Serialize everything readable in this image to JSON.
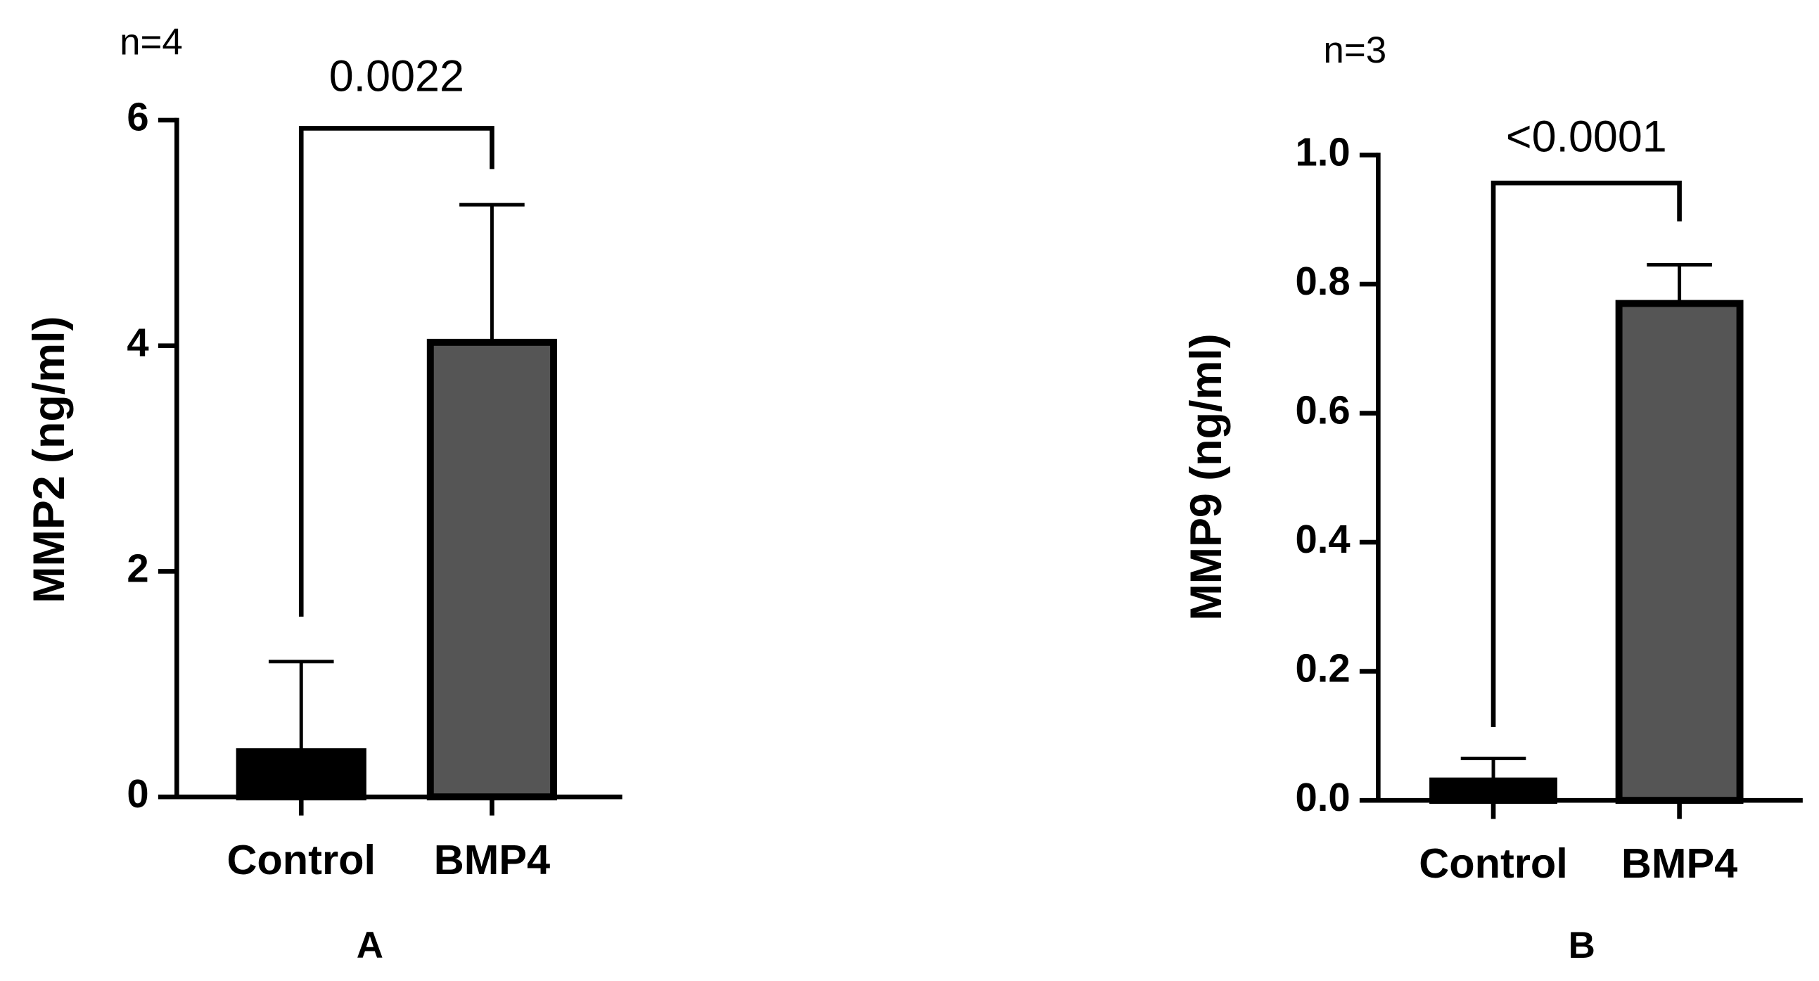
{
  "chart_data": [
    {
      "type": "bar",
      "n_label": "n=4",
      "annotation": "0.0022",
      "y_label": "MMP2 (ng/ml)",
      "panel_label": "A",
      "categories": [
        "Control",
        "BMP4"
      ],
      "values": [
        0.4,
        4.03
      ],
      "errors": [
        0.8,
        1.22
      ],
      "colors": [
        "#000000",
        "#555555"
      ],
      "ylim": [
        0,
        6
      ],
      "yticks": [
        0,
        2,
        4,
        6
      ]
    },
    {
      "type": "bar",
      "n_label": "n=3",
      "annotation": "<0.0001",
      "y_label": "MMP9 (ng/ml)",
      "panel_label": "B",
      "categories": [
        "Control",
        "BMP4"
      ],
      "values": [
        0.03,
        0.77
      ],
      "errors": [
        0.035,
        0.06
      ],
      "colors": [
        "#000000",
        "#555555"
      ],
      "ylim": [
        0,
        1
      ],
      "yticks": [
        {
          "value": 0,
          "label": "0.0"
        },
        0.2,
        0.4,
        0.6,
        0.8,
        {
          "value": 1,
          "label": "1.0"
        }
      ]
    }
  ]
}
